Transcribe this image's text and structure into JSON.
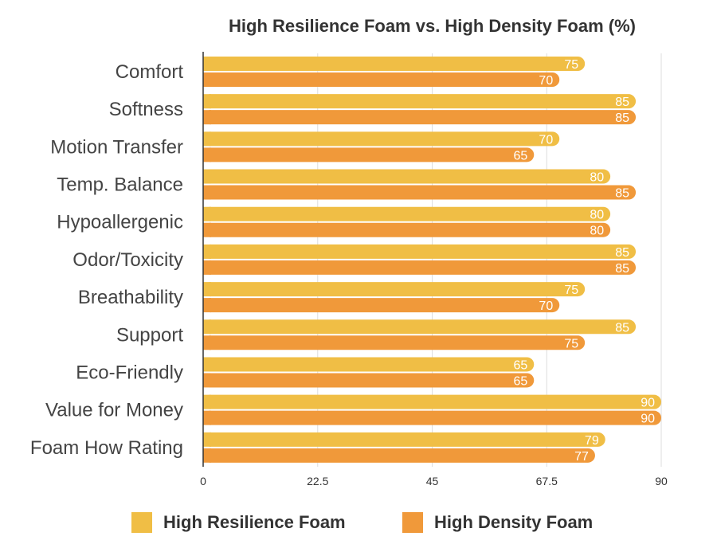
{
  "chart_data": {
    "type": "bar",
    "orientation": "horizontal",
    "title": "High Resilience Foam vs. High Density Foam (%)",
    "xlabel": "",
    "ylabel": "",
    "xlim": [
      0,
      90
    ],
    "xticks": [
      "0",
      "22.5",
      "45",
      "67.5",
      "90"
    ],
    "grid": true,
    "legend_position": "bottom",
    "categories": [
      "Comfort",
      "Softness",
      "Motion Transfer",
      "Temp. Balance",
      "Hypoallergenic",
      "Odor/Toxicity",
      "Breathability",
      "Support",
      "Eco-Friendly",
      "Value for Money",
      "Foam How Rating"
    ],
    "series": [
      {
        "name": "High Resilience Foam",
        "color": "#F0BE45",
        "values": [
          75,
          85,
          70,
          80,
          80,
          85,
          75,
          85,
          65,
          90,
          79
        ]
      },
      {
        "name": "High Density Foam",
        "color": "#F0993A",
        "values": [
          70,
          85,
          65,
          85,
          80,
          85,
          70,
          75,
          65,
          90,
          77
        ]
      }
    ]
  }
}
